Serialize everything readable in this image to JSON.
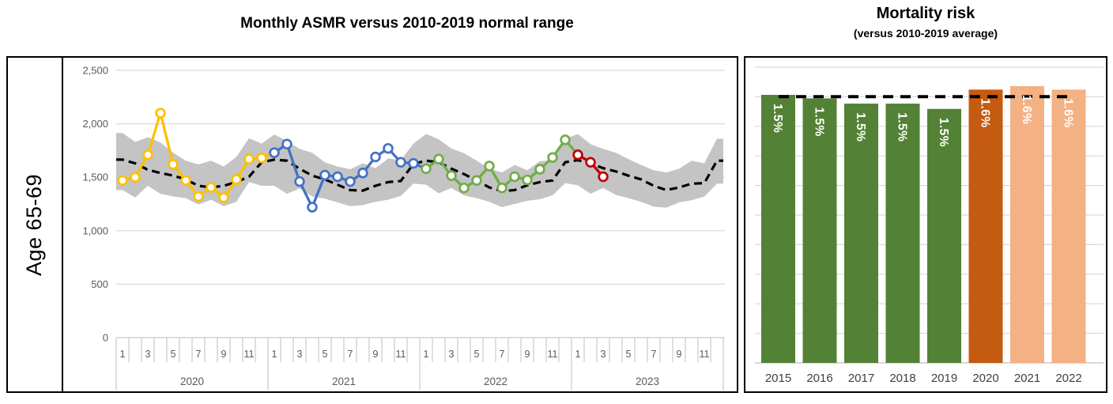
{
  "left_title": "Monthly ASMR versus 2010-2019 normal range",
  "right_title": "Mortality risk",
  "right_subtitle": "(versus 2010-2019 average)",
  "row_label": "Age 65-69",
  "chart_data": [
    {
      "type": "line",
      "title": "Monthly ASMR versus 2010-2019 normal range",
      "row_label": "Age 65-69",
      "ylim": [
        0,
        2500
      ],
      "grid": true,
      "y_tick_values": [
        2500,
        2000,
        1500,
        1000,
        500,
        0
      ],
      "y_tick_labels": [
        "2,500",
        "2,000",
        "1,500",
        "1,000",
        "500",
        "0"
      ],
      "month_labels": [
        "1",
        "3",
        "5",
        "7",
        "9",
        "11"
      ],
      "years": [
        "2020",
        "2021",
        "2022",
        "2023"
      ],
      "baseline": {
        "name": "2010-2019 average",
        "style": "dashed",
        "color": "#000000",
        "values_by_year": [
          [
            1665,
            1630,
            1570,
            1540,
            1515,
            1480,
            1420,
            1405,
            1420,
            1455,
            1505,
            1640
          ],
          [
            1665,
            1655,
            1580,
            1515,
            1480,
            1430,
            1380,
            1375,
            1420,
            1455,
            1465,
            1625
          ],
          [
            1655,
            1640,
            1580,
            1530,
            1470,
            1405,
            1370,
            1380,
            1425,
            1455,
            1470,
            1640
          ],
          [
            1660,
            1630,
            1585,
            1555,
            1515,
            1480,
            1420,
            1380,
            1405,
            1440,
            1445,
            1655
          ]
        ]
      },
      "normal_range": {
        "name": "2010-2019 normal range",
        "color": "#C4C4C4",
        "upper_by_year": [
          [
            1915,
            1830,
            1875,
            1825,
            1730,
            1655,
            1620,
            1655,
            1600,
            1690,
            1865,
            1815
          ],
          [
            1900,
            1840,
            1765,
            1730,
            1640,
            1600,
            1575,
            1630,
            1585,
            1675,
            1660,
            1815
          ],
          [
            1905,
            1855,
            1770,
            1725,
            1655,
            1580,
            1545,
            1615,
            1565,
            1650,
            1660,
            1860
          ],
          [
            1905,
            1810,
            1765,
            1730,
            1670,
            1615,
            1565,
            1545,
            1580,
            1655,
            1630,
            1860
          ]
        ],
        "lower_by_year": [
          [
            1380,
            1310,
            1420,
            1345,
            1320,
            1305,
            1245,
            1290,
            1230,
            1270,
            1455,
            1420
          ],
          [
            1420,
            1345,
            1395,
            1320,
            1300,
            1265,
            1230,
            1240,
            1270,
            1290,
            1325,
            1440
          ],
          [
            1430,
            1350,
            1400,
            1330,
            1305,
            1270,
            1220,
            1250,
            1280,
            1295,
            1330,
            1445
          ],
          [
            1425,
            1345,
            1400,
            1335,
            1305,
            1270,
            1225,
            1215,
            1265,
            1285,
            1320,
            1440
          ]
        ]
      },
      "series": [
        {
          "name": "2020",
          "color": "#FFC000",
          "values": [
            1470,
            1500,
            1710,
            2100,
            1620,
            1470,
            1320,
            1405,
            1310,
            1480,
            1670,
            1680
          ]
        },
        {
          "name": "2021",
          "color": "#4472C4",
          "values": [
            1730,
            1810,
            1460,
            1220,
            1520,
            1505,
            1460,
            1540,
            1690,
            1770,
            1640,
            1630
          ]
        },
        {
          "name": "2022",
          "color": "#70AD47",
          "values": [
            1580,
            1670,
            1515,
            1400,
            1470,
            1605,
            1400,
            1505,
            1475,
            1575,
            1685,
            1850
          ]
        },
        {
          "name": "2023",
          "color": "#C00000",
          "values": [
            1710,
            1640,
            1505
          ]
        }
      ]
    },
    {
      "type": "bar",
      "title": "Mortality risk",
      "subtitle": "(versus 2010-2019 average)",
      "categories": [
        "2015",
        "2016",
        "2017",
        "2018",
        "2019",
        "2020",
        "2021",
        "2022"
      ],
      "values": [
        1.53,
        1.51,
        1.48,
        1.48,
        1.45,
        1.56,
        1.58,
        1.56
      ],
      "bar_labels": [
        "1.5%",
        "1.5%",
        "1.5%",
        "1.5%",
        "1.5%",
        "1.6%",
        "1.6%",
        "1.6%"
      ],
      "bar_colors": [
        "#538135",
        "#538135",
        "#538135",
        "#538135",
        "#538135",
        "#C55A11",
        "#F4B183",
        "#F4B183"
      ],
      "label_color": "#FFFFFF",
      "average_line": {
        "name": "2010-2019 average",
        "style": "dashed",
        "color": "#000000",
        "value": 1.52
      },
      "ylim": [
        0,
        1.7
      ],
      "grid": true
    }
  ]
}
